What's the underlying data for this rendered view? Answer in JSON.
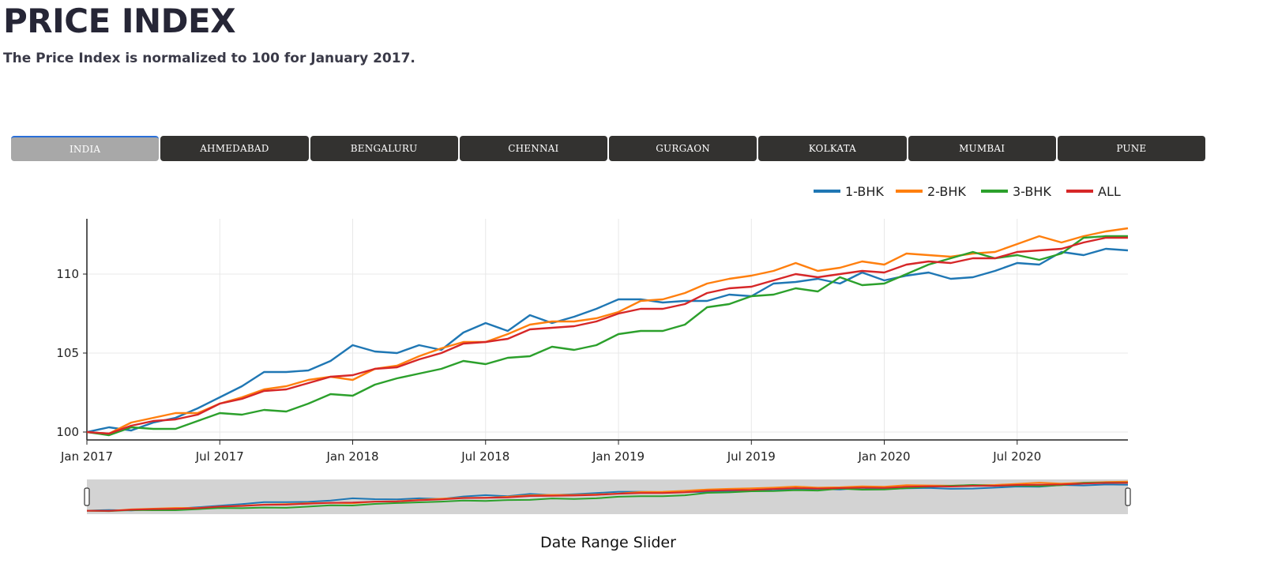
{
  "header": {
    "title": "PRICE INDEX",
    "subtitle": "The Price Index is normalized to 100 for January 2017."
  },
  "tabs": [
    {
      "label": "INDIA",
      "active": true
    },
    {
      "label": "AHMEDABAD",
      "active": false
    },
    {
      "label": "BENGALURU",
      "active": false
    },
    {
      "label": "CHENNAI",
      "active": false
    },
    {
      "label": "GURGAON",
      "active": false
    },
    {
      "label": "KOLKATA",
      "active": false
    },
    {
      "label": "MUMBAI",
      "active": false
    },
    {
      "label": "PUNE",
      "active": false
    }
  ],
  "slider": {
    "caption": "Date Range Slider"
  },
  "colors": {
    "tab_bg": "#333230",
    "tab_active_bg": "#a8a8a8",
    "tab_active_accent": "#2a6fd8",
    "slider_bg": "#d3d3d3"
  },
  "chart_data": {
    "type": "line",
    "title": "",
    "xlabel": "",
    "ylabel": "",
    "x": [
      "2017-01",
      "2017-02",
      "2017-03",
      "2017-04",
      "2017-05",
      "2017-06",
      "2017-07",
      "2017-08",
      "2017-09",
      "2017-10",
      "2017-11",
      "2017-12",
      "2018-01",
      "2018-02",
      "2018-03",
      "2018-04",
      "2018-05",
      "2018-06",
      "2018-07",
      "2018-08",
      "2018-09",
      "2018-10",
      "2018-11",
      "2018-12",
      "2019-01",
      "2019-02",
      "2019-03",
      "2019-04",
      "2019-05",
      "2019-06",
      "2019-07",
      "2019-08",
      "2019-09",
      "2019-10",
      "2019-11",
      "2019-12",
      "2020-01",
      "2020-02",
      "2020-03",
      "2020-04",
      "2020-05",
      "2020-06",
      "2020-07",
      "2020-08",
      "2020-09",
      "2020-10",
      "2020-11",
      "2020-12"
    ],
    "x_ticks": [
      "Jan 2017",
      "Jul 2017",
      "Jan 2018",
      "Jul 2018",
      "Jan 2019",
      "Jul 2019",
      "Jan 2020",
      "Jul 2020"
    ],
    "y_ticks": [
      100,
      105,
      110
    ],
    "ylim": [
      99.5,
      113.5
    ],
    "grid": true,
    "legend": "top-right",
    "series": [
      {
        "name": "1-BHK",
        "color": "#1f77b4",
        "values": [
          100.0,
          100.3,
          100.1,
          100.6,
          100.9,
          101.5,
          102.2,
          102.9,
          103.8,
          103.8,
          103.9,
          104.5,
          105.5,
          105.1,
          105.0,
          105.5,
          105.2,
          106.3,
          106.9,
          106.4,
          107.4,
          106.9,
          107.3,
          107.8,
          108.4,
          108.4,
          108.2,
          108.3,
          108.3,
          108.7,
          108.6,
          109.4,
          109.5,
          109.7,
          109.4,
          110.1,
          109.6,
          109.9,
          110.1,
          109.7,
          109.8,
          110.2,
          110.7,
          110.6,
          111.4,
          111.2,
          111.6,
          111.5
        ]
      },
      {
        "name": "2-BHK",
        "color": "#ff7f0e",
        "values": [
          100.0,
          99.9,
          100.6,
          100.9,
          101.2,
          101.2,
          101.8,
          102.2,
          102.7,
          102.9,
          103.3,
          103.5,
          103.3,
          104.0,
          104.2,
          104.8,
          105.3,
          105.7,
          105.7,
          106.2,
          106.8,
          107.0,
          107.0,
          107.2,
          107.6,
          108.3,
          108.4,
          108.8,
          109.4,
          109.7,
          109.9,
          110.2,
          110.7,
          110.2,
          110.4,
          110.8,
          110.6,
          111.3,
          111.2,
          111.1,
          111.3,
          111.4,
          111.9,
          112.4,
          112.0,
          112.4,
          112.7,
          112.9
        ]
      },
      {
        "name": "3-BHK",
        "color": "#2ca02c",
        "values": [
          100.0,
          99.8,
          100.3,
          100.2,
          100.2,
          100.7,
          101.2,
          101.1,
          101.4,
          101.3,
          101.8,
          102.4,
          102.3,
          103.0,
          103.4,
          103.7,
          104.0,
          104.5,
          104.3,
          104.7,
          104.8,
          105.4,
          105.2,
          105.5,
          106.2,
          106.4,
          106.4,
          106.8,
          107.9,
          108.1,
          108.6,
          108.7,
          109.1,
          108.9,
          109.8,
          109.3,
          109.4,
          110.0,
          110.6,
          111.0,
          111.4,
          111.0,
          111.2,
          110.9,
          111.3,
          112.3,
          112.4,
          112.4
        ]
      },
      {
        "name": "ALL",
        "color": "#d62728",
        "values": [
          100.0,
          99.9,
          100.4,
          100.7,
          100.8,
          101.1,
          101.8,
          102.1,
          102.6,
          102.7,
          103.1,
          103.5,
          103.6,
          104.0,
          104.1,
          104.6,
          105.0,
          105.6,
          105.7,
          105.9,
          106.5,
          106.6,
          106.7,
          107.0,
          107.5,
          107.8,
          107.8,
          108.1,
          108.8,
          109.1,
          109.2,
          109.6,
          110.0,
          109.8,
          110.0,
          110.2,
          110.1,
          110.6,
          110.8,
          110.7,
          111.0,
          111.0,
          111.4,
          111.5,
          111.6,
          112.0,
          112.3,
          112.3
        ]
      }
    ]
  }
}
